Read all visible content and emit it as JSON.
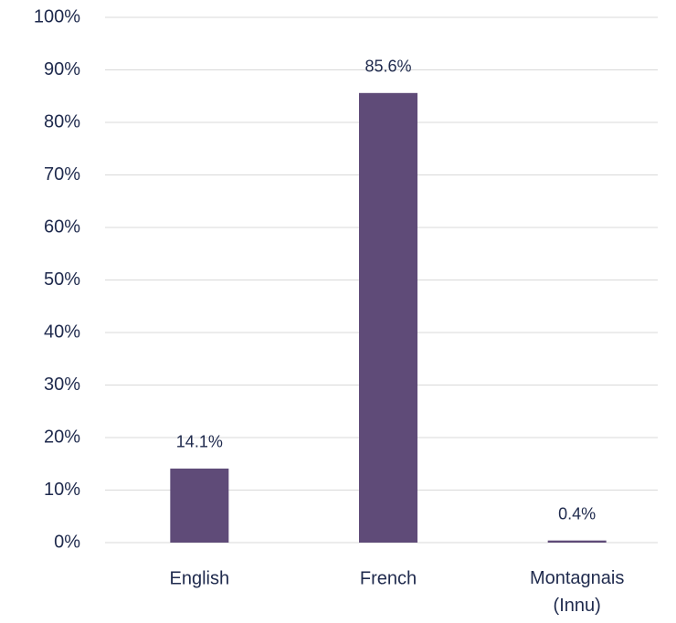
{
  "chart_data": {
    "type": "bar",
    "categories": [
      "English",
      "French",
      "Montagnais (Innu)"
    ],
    "values": [
      14.1,
      85.6,
      0.4
    ],
    "value_labels": [
      "14.1%",
      "85.6%",
      "0.4%"
    ],
    "color": "#5f4b78",
    "ylim": [
      0,
      100
    ],
    "yticks": [
      {
        "value": 0,
        "label": "0%"
      },
      {
        "value": 10,
        "label": "10%"
      },
      {
        "value": 20,
        "label": "20%"
      },
      {
        "value": 30,
        "label": "30%"
      },
      {
        "value": 40,
        "label": "40%"
      },
      {
        "value": 50,
        "label": "50%"
      },
      {
        "value": 60,
        "label": "60%"
      },
      {
        "value": 70,
        "label": "70%"
      },
      {
        "value": 80,
        "label": "80%"
      },
      {
        "value": 90,
        "label": "90%"
      },
      {
        "value": 100,
        "label": "100%"
      }
    ],
    "grid": true
  }
}
